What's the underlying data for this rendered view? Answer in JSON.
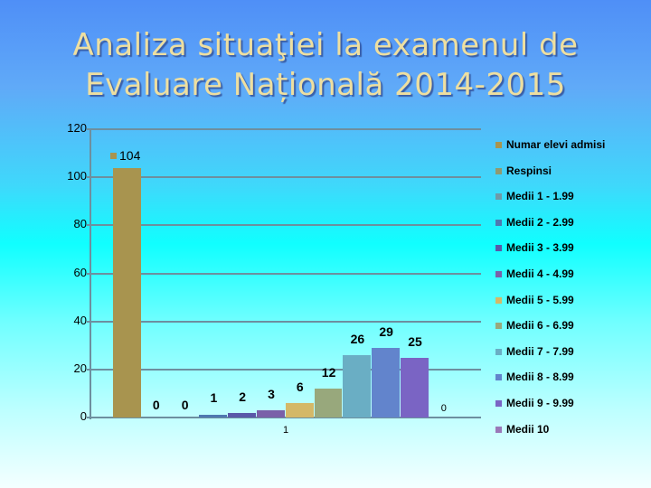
{
  "title": {
    "line1": "Analiza situaţiei la examenul de",
    "line2": "Evaluare Națională 2014-2015"
  },
  "colors": {
    "gridline": "#6d8f9f",
    "title_text": "#eedfa0"
  },
  "chart_data": {
    "type": "bar",
    "title": "Analiza situaţiei la examenul de Evaluare Națională 2014-2015",
    "xlabel": "",
    "ylabel": "",
    "ylim": [
      0,
      120
    ],
    "yticks": [
      0,
      20,
      40,
      60,
      80,
      100,
      120
    ],
    "grid": true,
    "legend_position": "right",
    "categories": [
      "1"
    ],
    "series": [
      {
        "name": "Numar elevi admisi",
        "values": [
          104
        ],
        "color": "#a8944f"
      },
      {
        "name": "Respinsi",
        "values": [
          0
        ],
        "color": "#8f9a72"
      },
      {
        "name": "Medii 1 - 1.99",
        "values": [
          0
        ],
        "color": "#6f9aa8"
      },
      {
        "name": "Medii 2 - 2.99",
        "values": [
          1
        ],
        "color": "#4f78b0"
      },
      {
        "name": "Medii 3 - 3.99",
        "values": [
          2
        ],
        "color": "#5a58a8"
      },
      {
        "name": "Medii 4 - 4.99",
        "values": [
          3
        ],
        "color": "#7a60a8"
      },
      {
        "name": "Medii 5 - 5.99",
        "values": [
          6
        ],
        "color": "#d4b868"
      },
      {
        "name": "Medii 6 - 6.99",
        "values": [
          12
        ],
        "color": "#98a87c"
      },
      {
        "name": "Medii 7 - 7.99",
        "values": [
          26
        ],
        "color": "#6aaec4"
      },
      {
        "name": "Medii 8 - 8.99",
        "values": [
          29
        ],
        "color": "#6284cc"
      },
      {
        "name": "Medii 9 - 9.99",
        "values": [
          25
        ],
        "color": "#7a64c4"
      },
      {
        "name": "Medii 10",
        "values": [
          0
        ],
        "color": "#9a78b8"
      }
    ]
  },
  "value_labels": [
    "104",
    "0",
    "0",
    "1",
    "2",
    "3",
    "6",
    "12",
    "26",
    "29",
    "25",
    "0"
  ],
  "y_tick_labels": [
    "120",
    "100",
    "80",
    "60",
    "40",
    "20",
    "0"
  ],
  "x_category_label": "1",
  "legend": [
    "Numar elevi admisi",
    "Respinsi",
    "Medii 1 - 1.99",
    "Medii 2 - 2.99",
    "Medii 3 - 3.99",
    "Medii 4 - 4.99",
    "Medii 5 - 5.99",
    "Medii 6 - 6.99",
    "Medii 7 - 7.99",
    "Medii 8 - 8.99",
    "Medii 9 - 9.99",
    "Medii 10"
  ]
}
